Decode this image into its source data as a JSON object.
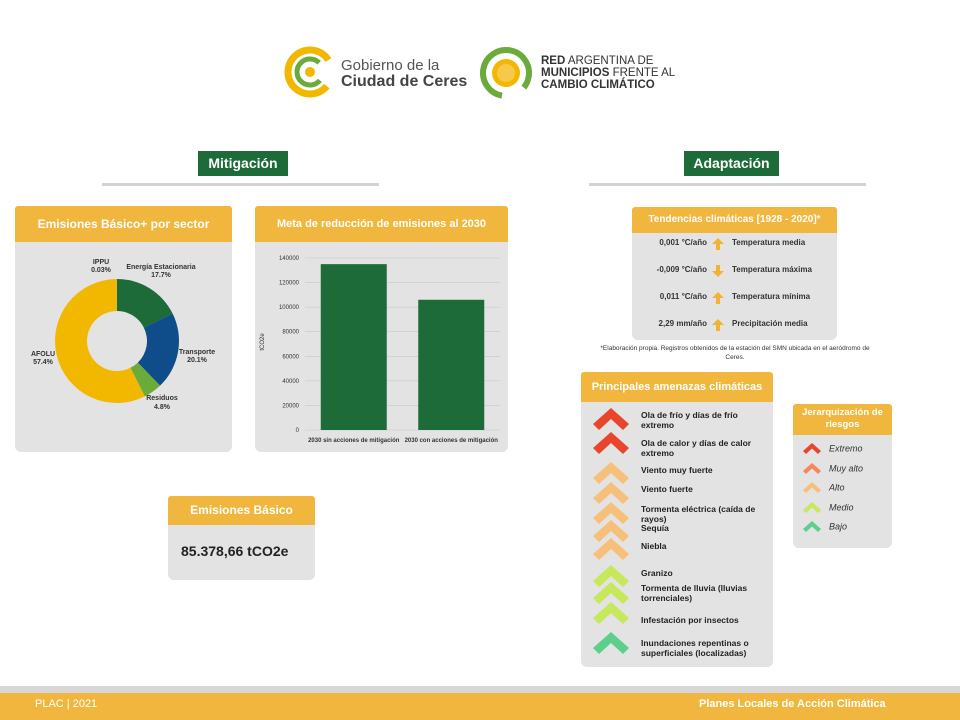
{
  "header": {
    "logo1_line1": "Gobierno de la",
    "logo1_line2": "Ciudad de Ceres",
    "logo2_line1a": "RED",
    "logo2_line1b": " ARGENTINA DE",
    "logo2_line2a": "MUNICIPIOS",
    "logo2_line2b": " FRENTE AL",
    "logo2_line3": "CAMBIO CLIMÁTICO"
  },
  "sections": {
    "mitigacion": "Mitigación",
    "adaptacion": "Adaptación"
  },
  "emisiones_sector": {
    "title": "Emisiones Básico+ por sector",
    "labels": {
      "ippu": "IPPU",
      "ippu_pct": "0.03%",
      "energia": "Energía Estacionaria",
      "energia_pct": "17.7%",
      "transporte": "Transporte",
      "transporte_pct": "20.1%",
      "residuos": "Residuos",
      "residuos_pct": "4.8%",
      "afolu": "AFOLU",
      "afolu_pct": "57.4%"
    },
    "colors": {
      "energia": "#1e6b3a",
      "transporte": "#0e4c8a",
      "residuos": "#6aab3c",
      "afolu": "#f2b800",
      "ippu": "#999999"
    }
  },
  "meta_reduccion": {
    "title": "Meta de reducción de emisiones al 2030"
  },
  "chart_data": [
    {
      "type": "pie",
      "title": "Emisiones Básico+ por sector",
      "categories": [
        "Energía Estacionaria",
        "Transporte",
        "Residuos",
        "AFOLU",
        "IPPU"
      ],
      "values": [
        17.7,
        20.1,
        4.8,
        57.4,
        0.03
      ]
    },
    {
      "type": "bar",
      "title": "Meta de reducción de emisiones al 2030",
      "categories": [
        "2030 sin acciones de mitigación",
        "2030 con acciones de mitigación"
      ],
      "values": [
        135000,
        106000
      ],
      "ylabel": "tCO2e",
      "ylim": [
        0,
        140000
      ],
      "yticks": [
        "0",
        "20000",
        "40000",
        "60000",
        "80000",
        "100000",
        "120000",
        "140000"
      ],
      "color": "#1e6b3a"
    }
  ],
  "emisiones_basico": {
    "title": "Emisiones Básico",
    "value": "85.378,66 tCO2e"
  },
  "tendencias": {
    "title": "Tendencias climáticas [1928 - 2020]*",
    "rows": [
      {
        "value": "0,001 °C/año",
        "label": "Temperatura media",
        "dir": "up"
      },
      {
        "value": "-0,009 °C/año",
        "label": "Temperatura máxima",
        "dir": "down"
      },
      {
        "value": "0,011 °C/año",
        "label": "Temperatura mínima",
        "dir": "up"
      },
      {
        "value": "2,29 mm/año",
        "label": "Precipitación media",
        "dir": "up"
      }
    ],
    "note": "*Elaboración propia. Registros obtenidos de la estación del SMN ubicada en el aeródromo de Ceres."
  },
  "amenazas": {
    "title": "Principales amenazas climáticas",
    "items": [
      {
        "label": "Ola de frío y días de frío extremo",
        "level": "extremo"
      },
      {
        "label": "Ola de calor y días de calor extremo",
        "level": "extremo"
      },
      {
        "label": "Viento muy fuerte",
        "level": "alto"
      },
      {
        "label": "Viento fuerte",
        "level": "alto"
      },
      {
        "label": "Tormenta eléctrica (caída de rayos)",
        "level": "alto"
      },
      {
        "label": "Sequía",
        "level": "alto"
      },
      {
        "label": "Niebla",
        "level": "alto"
      },
      {
        "label": "Granizo",
        "level": "medio"
      },
      {
        "label": "Tormenta de lluvia (lluvias torrenciales)",
        "level": "medio"
      },
      {
        "label": "Infestación por insectos",
        "level": "medio"
      },
      {
        "label": "Inundaciones repentinas o superficiales (localizadas)",
        "level": "bajo"
      }
    ]
  },
  "jerarquizacion": {
    "title": "Jerarquización de riesgos",
    "levels": [
      {
        "label": "Extremo",
        "color": "#e8452c"
      },
      {
        "label": "Muy alto",
        "color": "#f08a5a"
      },
      {
        "label": "Alto",
        "color": "#f6c07a"
      },
      {
        "label": "Medio",
        "color": "#c6e85a"
      },
      {
        "label": "Bajo",
        "color": "#5cd08a"
      }
    ]
  },
  "footer": {
    "left": "PLAC | 2021",
    "right": "Planes Locales de Acción Climática"
  }
}
